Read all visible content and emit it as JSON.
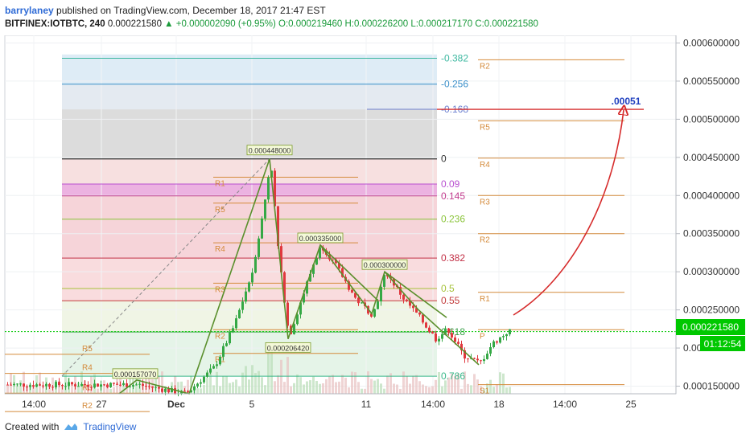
{
  "header": {
    "author": "barrylaney",
    "published": "published on TradingView.com, December 18, 2017 21:47 EST",
    "symbol": "BITFINEX:IOTBTC, 240",
    "last": "0.000221580",
    "change": "+0.000002090 (+0.95%)",
    "ohlc": "O:0.000219460 H:0.000226200 L:0.000217170 C:0.000221580"
  },
  "footer": {
    "created_with": "Created with",
    "brand": "TradingView"
  },
  "colors": {
    "up": "#35a845",
    "down": "#e0383e",
    "fib_line": "#d48a3a",
    "target": "#d62b2b",
    "price_tag": "#00c800"
  },
  "chart_data": {
    "type": "candlestick",
    "y_range": [
      0.00014,
      0.00061
    ],
    "y_ticks": [
      "0.000600000",
      "0.000550000",
      "0.000500000",
      "0.000450000",
      "0.000400000",
      "0.000350000",
      "0.000300000",
      "0.000250000",
      "0.000200000",
      "0.000150000"
    ],
    "x_ticks": [
      "14:00",
      "27",
      "Dec",
      "5",
      "11",
      "14:00",
      "18",
      "14:00",
      "25"
    ],
    "current_price": "0.000221580",
    "countdown": "01:12:54",
    "target_label": ".00051",
    "fib_levels": [
      {
        "label": "-0.382",
        "price": 0.00058,
        "color": "#3cb8a0"
      },
      {
        "label": "-0.256",
        "price": 0.000546,
        "color": "#3a8fc9"
      },
      {
        "label": "-0.168",
        "price": 0.000513,
        "color": "#6b7fd0"
      },
      {
        "label": "0",
        "price": 0.000448,
        "color": "#333333"
      },
      {
        "label": "0.09",
        "price": 0.000415,
        "color": "#b84fd0"
      },
      {
        "label": "0.145",
        "price": 0.0003995,
        "color": "#c23c8e"
      },
      {
        "label": "0.236",
        "price": 0.000369,
        "color": "#8ac43a"
      },
      {
        "label": "0.382",
        "price": 0.000318,
        "color": "#c22f45"
      },
      {
        "label": "0.5",
        "price": 0.000278,
        "color": "#a6c23a"
      },
      {
        "label": "0.55",
        "price": 0.000262,
        "color": "#c23c3c"
      },
      {
        "label": "0.618",
        "price": 0.000221,
        "color": "#3aa04a"
      },
      {
        "label": "0.786",
        "price": 0.000163,
        "color": "#3ab88a"
      }
    ],
    "pivot_labels": {
      "right": [
        "R2",
        "R5",
        "R4",
        "R3",
        "R2",
        "R1",
        "P",
        "S1"
      ],
      "mid": [
        "R1",
        "R5",
        "R4",
        "R3",
        "R2",
        "R1"
      ],
      "left": [
        "R5",
        "R4",
        "R3",
        "R2"
      ]
    },
    "annotations": [
      "0.000448000",
      "0.000335000",
      "0.000300000",
      "0.000206420",
      "0.000157070"
    ]
  }
}
